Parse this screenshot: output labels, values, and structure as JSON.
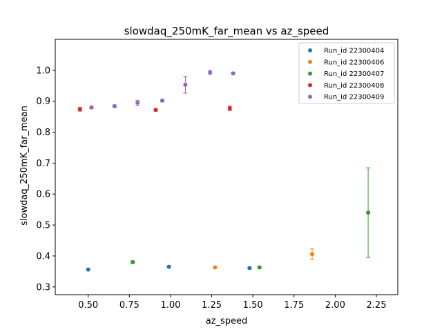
{
  "chart_data": {
    "type": "scatter",
    "title": "slowdaq_250mK_far_mean vs az_speed",
    "xlabel": "az_speed",
    "ylabel": "slowdaq_250mK_far_mean",
    "xlim": [
      0.3,
      2.38
    ],
    "ylim": [
      0.275,
      1.1
    ],
    "x_ticks": [
      0.5,
      0.75,
      1.0,
      1.25,
      1.5,
      1.75,
      2.0,
      2.25
    ],
    "x_tick_labels": [
      "0.50",
      "0.75",
      "1.00",
      "1.25",
      "1.50",
      "1.75",
      "2.00",
      "2.25"
    ],
    "y_ticks": [
      0.3,
      0.4,
      0.5,
      0.6,
      0.7,
      0.8,
      0.9,
      1.0
    ],
    "y_tick_labels": [
      "0.3",
      "0.4",
      "0.5",
      "0.6",
      "0.7",
      "0.8",
      "0.9",
      "1.0"
    ],
    "grid": false,
    "legend_position": "top-right",
    "error_bars": true,
    "series": [
      {
        "name": "Run_id 22300404",
        "color": "#1f77b4",
        "points": [
          {
            "x": 0.5,
            "y": 0.356,
            "err": 0.003
          },
          {
            "x": 0.99,
            "y": 0.365,
            "err": 0.003
          },
          {
            "x": 1.48,
            "y": 0.361,
            "err": 0.003
          }
        ]
      },
      {
        "name": "Run_id 22300406",
        "color": "#ff7f0e",
        "points": [
          {
            "x": 1.27,
            "y": 0.363,
            "err": 0.003
          },
          {
            "x": 1.86,
            "y": 0.406,
            "err": 0.017
          }
        ]
      },
      {
        "name": "Run_id 22300407",
        "color": "#2ca02c",
        "points": [
          {
            "x": 0.77,
            "y": 0.38,
            "err": 0.004
          },
          {
            "x": 1.54,
            "y": 0.363,
            "err": 0.004
          },
          {
            "x": 2.2,
            "y": 0.54,
            "err": 0.145
          }
        ]
      },
      {
        "name": "Run_id 22300408",
        "color": "#d62728",
        "points": [
          {
            "x": 0.45,
            "y": 0.874,
            "err": 0.006
          },
          {
            "x": 0.91,
            "y": 0.872,
            "err": 0.004
          },
          {
            "x": 1.36,
            "y": 0.877,
            "err": 0.007
          }
        ]
      },
      {
        "name": "Run_id 22300409",
        "color": "#9467bd",
        "points": [
          {
            "x": 0.52,
            "y": 0.88,
            "err": 0.004
          },
          {
            "x": 0.66,
            "y": 0.884,
            "err": 0.004
          },
          {
            "x": 0.8,
            "y": 0.895,
            "err": 0.008
          },
          {
            "x": 0.95,
            "y": 0.902,
            "err": 0.004
          },
          {
            "x": 1.09,
            "y": 0.953,
            "err": 0.027
          },
          {
            "x": 1.24,
            "y": 0.993,
            "err": 0.006
          },
          {
            "x": 1.38,
            "y": 0.99,
            "err": 0.004
          }
        ]
      }
    ]
  }
}
